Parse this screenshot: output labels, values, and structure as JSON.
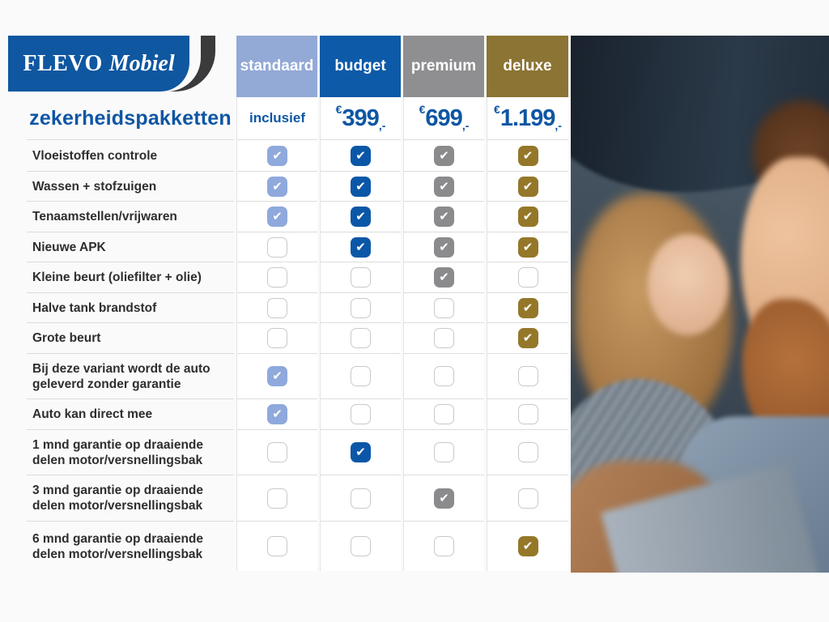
{
  "brand": {
    "name_primary": "FLEVO",
    "name_secondary": "Mobiel"
  },
  "page_title": "zekerheidspakketten",
  "icons": {
    "check": "✔"
  },
  "colors": {
    "brand_blue": "#0e56a4",
    "logo_blue": "#0f57a0",
    "logo_dark": "#3b3b3d"
  },
  "table": {
    "columns": [
      {
        "label": "standaard",
        "color": "#93a9d6",
        "check_color": "#8fa9dc",
        "price": {
          "text": "inclusief"
        }
      },
      {
        "label": "budget",
        "color": "#0d5aa8",
        "check_color": "#0b57a7",
        "price": {
          "currency": "€",
          "amount": "399",
          "suffix": ",-"
        }
      },
      {
        "label": "premium",
        "color": "#8f8f91",
        "check_color": "#8b8b8d",
        "price": {
          "currency": "€",
          "amount": "699",
          "suffix": ",-"
        }
      },
      {
        "label": "deluxe",
        "color": "#8c7434",
        "check_color": "#957729",
        "price": {
          "currency": "€",
          "amount": "1.199",
          "suffix": ",-"
        }
      }
    ],
    "rows": [
      {
        "label": "Vloeistoffen controle",
        "checks": [
          true,
          true,
          true,
          true
        ]
      },
      {
        "label": "Wassen + stofzuigen",
        "checks": [
          true,
          true,
          true,
          true
        ]
      },
      {
        "label": "Tenaamstellen/vrijwaren",
        "checks": [
          true,
          true,
          true,
          true
        ]
      },
      {
        "label": "Nieuwe APK",
        "checks": [
          false,
          true,
          true,
          true
        ]
      },
      {
        "label": "Kleine beurt (oliefilter + olie)",
        "checks": [
          false,
          false,
          true,
          false
        ]
      },
      {
        "label": "Halve tank brandstof",
        "checks": [
          false,
          false,
          false,
          true
        ]
      },
      {
        "label": "Grote beurt",
        "checks": [
          false,
          false,
          false,
          true
        ]
      },
      {
        "label": "Bij deze variant wordt de auto geleverd zonder garantie",
        "checks": [
          true,
          false,
          false,
          false
        ]
      },
      {
        "label": "Auto kan direct mee",
        "checks": [
          true,
          false,
          false,
          false
        ]
      },
      {
        "label": "1 mnd garantie op draaiende delen motor/versnellingsbak",
        "checks": [
          false,
          true,
          false,
          false
        ]
      },
      {
        "label": "3 mnd garantie op draaiende delen motor/versnellingsbak",
        "checks": [
          false,
          false,
          true,
          false
        ]
      },
      {
        "label": "6 mnd garantie op draaiende delen motor/versnellingsbak",
        "checks": [
          false,
          false,
          false,
          true
        ]
      }
    ]
  },
  "photo": {
    "description": "Smiling couple inside a car"
  }
}
